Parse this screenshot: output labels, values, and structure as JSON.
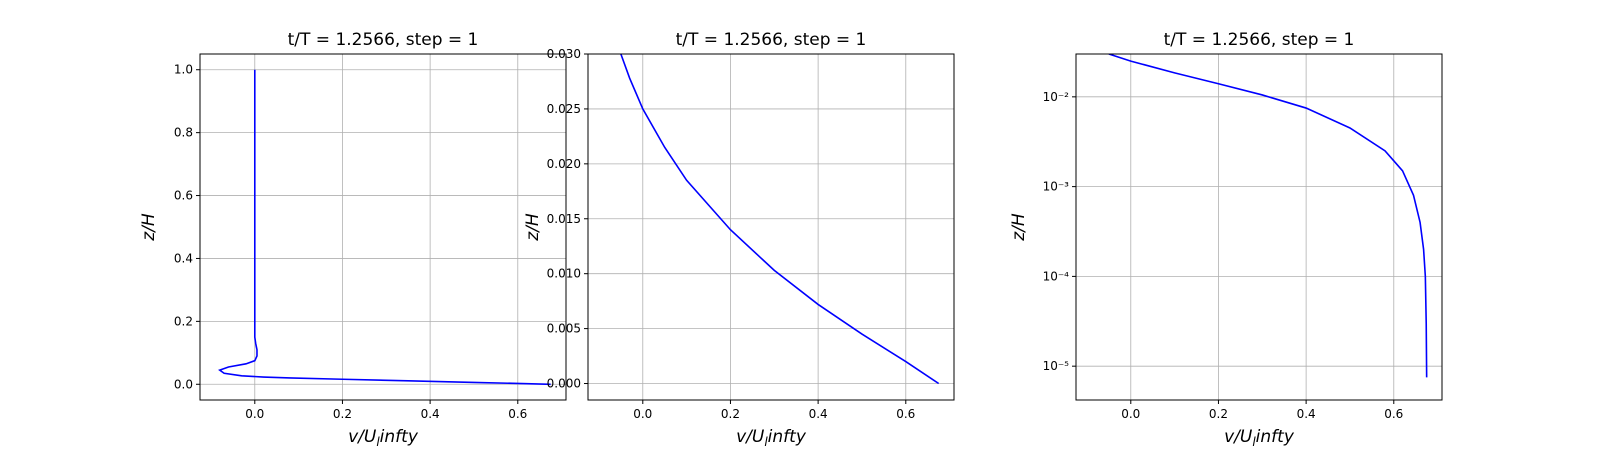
{
  "chart_data": [
    {
      "type": "line",
      "title": "t/T = 1.2566, step = 1",
      "xlabel": "v/U_l infty",
      "ylabel": "z/H",
      "xlim": [
        -0.125,
        0.71
      ],
      "ylim": [
        -0.05,
        1.05
      ],
      "yscale": "linear",
      "grid": true,
      "xticks": [
        0.0,
        0.2,
        0.4,
        0.6
      ],
      "xtick_labels": [
        "0.0",
        "0.2",
        "0.4",
        "0.6"
      ],
      "yticks": [
        0.0,
        0.2,
        0.4,
        0.6,
        0.8,
        1.0
      ],
      "ytick_labels": [
        "0.0",
        "0.2",
        "0.4",
        "0.6",
        "0.8",
        "1.0"
      ],
      "color": "#0000ff",
      "series": [
        {
          "x": [
            0.675,
            0.5,
            0.35,
            0.2,
            0.08,
            0.02,
            -0.03,
            -0.07,
            -0.08,
            -0.06,
            -0.02,
            0.0,
            0.005,
            0.005,
            0.002,
            0.0,
            0.0,
            0.0,
            0.0
          ],
          "y": [
            0.0,
            0.006,
            0.011,
            0.016,
            0.02,
            0.023,
            0.027,
            0.035,
            0.045,
            0.055,
            0.065,
            0.075,
            0.09,
            0.11,
            0.13,
            0.15,
            0.3,
            0.6,
            1.0
          ]
        }
      ]
    },
    {
      "type": "line",
      "title": "t/T = 1.2566, step = 1",
      "xlabel": "v/U_l infty",
      "ylabel": "z/H",
      "xlim": [
        -0.125,
        0.71
      ],
      "ylim": [
        -0.0015,
        0.03
      ],
      "yscale": "linear",
      "grid": true,
      "xticks": [
        0.0,
        0.2,
        0.4,
        0.6
      ],
      "xtick_labels": [
        "0.0",
        "0.2",
        "0.4",
        "0.6"
      ],
      "yticks": [
        0.0,
        0.005,
        0.01,
        0.015,
        0.02,
        0.025,
        0.03
      ],
      "ytick_labels": [
        "0.000",
        "0.005",
        "0.010",
        "0.015",
        "0.020",
        "0.025",
        "0.030"
      ],
      "color": "#0000ff",
      "series": [
        {
          "x": [
            0.675,
            0.6,
            0.5,
            0.4,
            0.3,
            0.2,
            0.1,
            0.05,
            0.0,
            -0.03,
            -0.05
          ],
          "y": [
            0.0,
            0.002,
            0.0045,
            0.0072,
            0.0103,
            0.014,
            0.0185,
            0.0215,
            0.025,
            0.0278,
            0.03
          ]
        }
      ]
    },
    {
      "type": "line",
      "title": "t/T = 1.2566, step = 1",
      "xlabel": "v/U_l infty",
      "ylabel": "z/H",
      "xlim": [
        -0.125,
        0.71
      ],
      "ylim": [
        4.2e-06,
        0.03
      ],
      "yscale": "log",
      "grid": true,
      "xticks": [
        0.0,
        0.2,
        0.4,
        0.6
      ],
      "xtick_labels": [
        "0.0",
        "0.2",
        "0.4",
        "0.6"
      ],
      "yticks": [
        1e-05,
        0.0001,
        0.001,
        0.01
      ],
      "ytick_labels": [
        "10⁻⁵",
        "10⁻⁴",
        "10⁻³",
        "10⁻²"
      ],
      "color": "#0000ff",
      "series": [
        {
          "x": [
            0.675,
            0.674,
            0.672,
            0.668,
            0.66,
            0.645,
            0.62,
            0.58,
            0.5,
            0.4,
            0.3,
            0.2,
            0.1,
            0.0,
            -0.05
          ],
          "y": [
            7.5e-06,
            3e-05,
            0.0001,
            0.0002,
            0.0004,
            0.0008,
            0.0015,
            0.0025,
            0.0045,
            0.0075,
            0.0105,
            0.014,
            0.0185,
            0.025,
            0.03
          ]
        }
      ]
    }
  ]
}
